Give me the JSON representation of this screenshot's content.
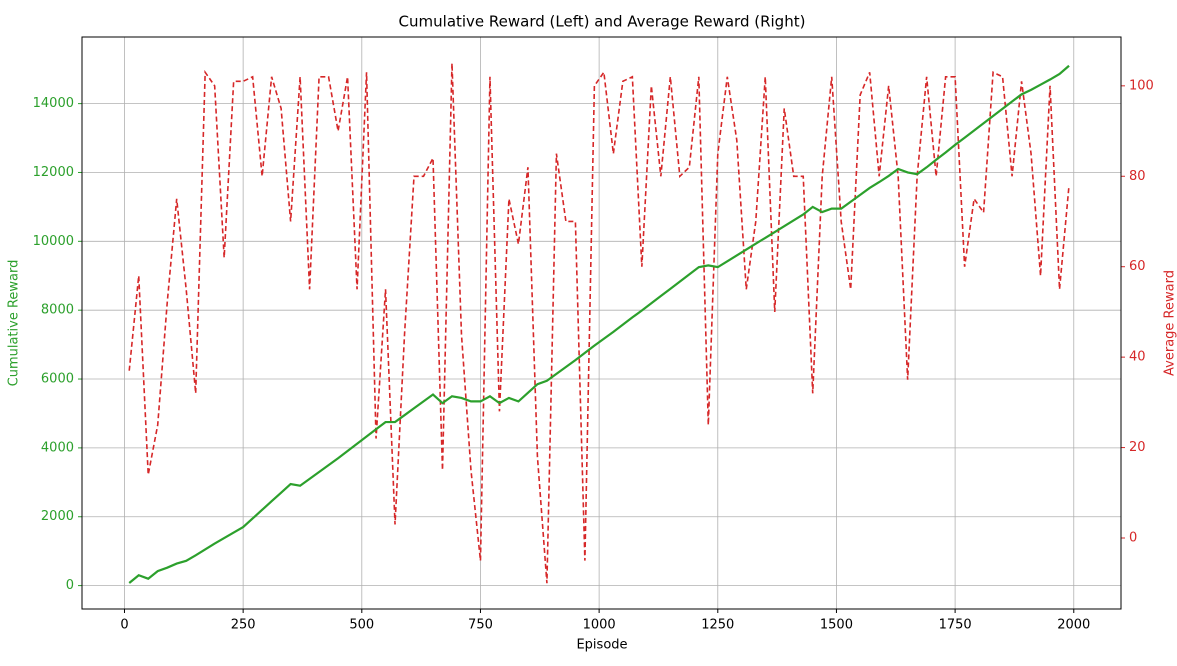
{
  "chart_data": {
    "type": "line",
    "title": "Cumulative Reward (Left) and Average Reward (Right)",
    "xlabel": "Episode",
    "ylabel": "Cumulative Reward",
    "y2label": "Average Reward",
    "x": [
      10,
      30,
      50,
      70,
      90,
      110,
      130,
      150,
      170,
      190,
      210,
      230,
      250,
      270,
      290,
      310,
      330,
      350,
      370,
      390,
      410,
      430,
      450,
      470,
      490,
      510,
      530,
      550,
      570,
      590,
      610,
      630,
      650,
      670,
      690,
      710,
      730,
      750,
      770,
      790,
      810,
      830,
      850,
      870,
      890,
      910,
      930,
      950,
      970,
      990,
      1010,
      1030,
      1050,
      1070,
      1090,
      1110,
      1130,
      1150,
      1170,
      1190,
      1210,
      1230,
      1250,
      1270,
      1290,
      1310,
      1330,
      1350,
      1370,
      1390,
      1410,
      1430,
      1450,
      1470,
      1490,
      1510,
      1530,
      1550,
      1570,
      1590,
      1610,
      1630,
      1650,
      1670,
      1690,
      1710,
      1730,
      1750,
      1770,
      1790,
      1810,
      1830,
      1850,
      1870,
      1890,
      1910,
      1930,
      1950,
      1970,
      1990
    ],
    "series": [
      {
        "name": "Cumulative Reward",
        "color": "#2ca02c",
        "dashed": false,
        "values": [
          75,
          300,
          200,
          420,
          520,
          640,
          720,
          880,
          1050,
          1220,
          1380,
          1540,
          1700,
          1950,
          2200,
          2450,
          2700,
          2950,
          2900,
          3100,
          3300,
          3500,
          3700,
          3910,
          4120,
          4330,
          4540,
          4750,
          4750,
          4950,
          5150,
          5350,
          5550,
          5300,
          5500,
          5450,
          5350,
          5350,
          5500,
          5300,
          5450,
          5350,
          5600,
          5850,
          5950,
          6150,
          6350,
          6550,
          6760,
          6970,
          7170,
          7370,
          7580,
          7790,
          7990,
          8200,
          8410,
          8620,
          8830,
          9040,
          9250,
          9300,
          9250,
          9420,
          9590,
          9760,
          9930,
          10100,
          10270,
          10440,
          10610,
          10780,
          11000,
          10850,
          10950,
          10950,
          11150,
          11350,
          11550,
          11720,
          11900,
          12100,
          12000,
          11950,
          12150,
          12370,
          12580,
          12800,
          13010,
          13220,
          13430,
          13640,
          13850,
          14060,
          14270,
          14400,
          14550,
          14700,
          14860,
          15100
        ]
      },
      {
        "name": "Average Reward",
        "color": "#d62728",
        "dashed": true,
        "axis": "y2",
        "values": [
          37,
          58,
          14,
          25,
          52,
          75,
          55,
          32,
          103,
          100,
          62,
          101,
          101,
          102,
          80,
          102,
          95,
          70,
          102,
          55,
          102,
          102,
          90,
          102,
          55,
          103,
          22,
          55,
          3,
          45,
          80,
          80,
          84,
          15,
          105,
          45,
          15,
          -5,
          102,
          28,
          75,
          65,
          82,
          18,
          -10,
          85,
          70,
          70,
          -5,
          100,
          103,
          85,
          101,
          102,
          60,
          100,
          80,
          102,
          80,
          82,
          102,
          25,
          85,
          102,
          88,
          55,
          70,
          102,
          50,
          95,
          80,
          80,
          32,
          80,
          102,
          70,
          55,
          98,
          103,
          80,
          100,
          80,
          35,
          80,
          102,
          80,
          102,
          102,
          60,
          75,
          72,
          103,
          102,
          80,
          101,
          85,
          58,
          100,
          55,
          78
        ]
      }
    ],
    "xlim": [
      -89.5,
      2099.5
    ],
    "xticks": [
      0,
      250,
      500,
      750,
      1000,
      1250,
      1500,
      1750,
      2000
    ],
    "ylim": [
      -680,
      15935
    ],
    "yticks": [
      0,
      2000,
      4000,
      6000,
      8000,
      10000,
      12000,
      14000
    ],
    "y2lim": [
      -15.7,
      110.8
    ],
    "y2ticks": [
      0,
      20,
      40,
      60,
      80,
      100
    ],
    "grid": true
  }
}
